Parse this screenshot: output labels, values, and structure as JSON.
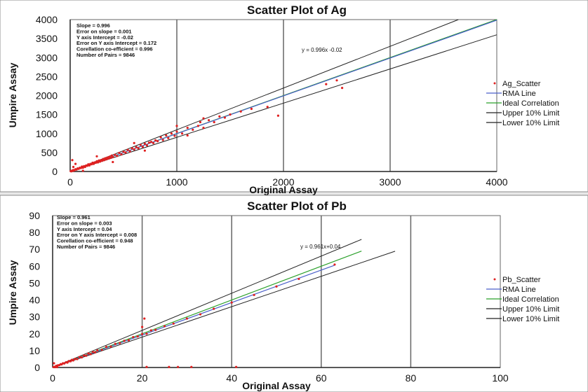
{
  "colors": {
    "scatter": "#e02020",
    "rma": "#4a5fc9",
    "ideal": "#2aa02a",
    "upper": "#222222",
    "lower": "#222222",
    "grid": "#666666"
  },
  "chart_data": [
    {
      "type": "scatter",
      "title": "Scatter Plot of Ag",
      "xlabel": "Original Assay",
      "ylabel": "Umpire Assay",
      "xlim": [
        0,
        4000
      ],
      "ylim": [
        0,
        4000
      ],
      "xticks": [
        "0",
        "1000",
        "2000",
        "3000",
        "4000"
      ],
      "yticks": [
        "0",
        "500",
        "1000",
        "1500",
        "2000",
        "2500",
        "3000",
        "3500",
        "4000"
      ],
      "stats": [
        "Slope = 0.996",
        "Error on slope = 0.001",
        "Y axis Intercept = -0.02",
        "Error on Y axis Intercept = 0.172",
        "Corellation co-efficient = 0.996",
        "Number of Pairs = 9846"
      ],
      "equation": "y = 0.996x -0.02",
      "legend": [
        "Ag_Scatter",
        "RMA Line",
        "Ideal Correlation",
        "Upper 10% Limit",
        "Lower 10% Limit"
      ],
      "rma": {
        "slope": 0.996,
        "intercept": -0.02
      },
      "lines": {
        "rma": [
          [
            0,
            0
          ],
          [
            4000,
            3984
          ]
        ],
        "ideal": [
          [
            0,
            0
          ],
          [
            4000,
            4000
          ]
        ],
        "upper": [
          [
            0,
            0
          ],
          [
            3640,
            4000
          ]
        ],
        "lower": [
          [
            0,
            0
          ],
          [
            4000,
            3600
          ]
        ]
      },
      "points": [
        [
          5,
          10
        ],
        [
          10,
          5
        ],
        [
          15,
          20
        ],
        [
          20,
          25
        ],
        [
          25,
          15
        ],
        [
          30,
          40
        ],
        [
          40,
          30
        ],
        [
          50,
          60
        ],
        [
          60,
          50
        ],
        [
          70,
          80
        ],
        [
          80,
          70
        ],
        [
          90,
          100
        ],
        [
          100,
          90
        ],
        [
          110,
          130
        ],
        [
          120,
          100
        ],
        [
          130,
          140
        ],
        [
          140,
          120
        ],
        [
          150,
          160
        ],
        [
          160,
          150
        ],
        [
          170,
          190
        ],
        [
          180,
          160
        ],
        [
          190,
          200
        ],
        [
          200,
          190
        ],
        [
          210,
          230
        ],
        [
          220,
          200
        ],
        [
          230,
          240
        ],
        [
          240,
          230
        ],
        [
          250,
          270
        ],
        [
          260,
          240
        ],
        [
          270,
          290
        ],
        [
          280,
          260
        ],
        [
          290,
          300
        ],
        [
          300,
          280
        ],
        [
          310,
          330
        ],
        [
          320,
          300
        ],
        [
          330,
          350
        ],
        [
          340,
          320
        ],
        [
          350,
          370
        ],
        [
          360,
          340
        ],
        [
          370,
          390
        ],
        [
          380,
          360
        ],
        [
          390,
          420
        ],
        [
          400,
          380
        ],
        [
          420,
          440
        ],
        [
          440,
          410
        ],
        [
          460,
          490
        ],
        [
          480,
          450
        ],
        [
          500,
          520
        ],
        [
          520,
          500
        ],
        [
          540,
          570
        ],
        [
          560,
          530
        ],
        [
          580,
          610
        ],
        [
          600,
          580
        ],
        [
          620,
          640
        ],
        [
          640,
          610
        ],
        [
          660,
          700
        ],
        [
          680,
          650
        ],
        [
          700,
          730
        ],
        [
          720,
          690
        ],
        [
          740,
          760
        ],
        [
          760,
          780
        ],
        [
          780,
          750
        ],
        [
          800,
          820
        ],
        [
          820,
          800
        ],
        [
          850,
          900
        ],
        [
          870,
          830
        ],
        [
          900,
          950
        ],
        [
          920,
          880
        ],
        [
          950,
          1000
        ],
        [
          980,
          940
        ],
        [
          1000,
          1050
        ],
        [
          1050,
          1000
        ],
        [
          1100,
          1150
        ],
        [
          1150,
          1100
        ],
        [
          1200,
          1200
        ],
        [
          1220,
          1300
        ],
        [
          1250,
          1150
        ],
        [
          1300,
          1350
        ],
        [
          1350,
          1300
        ],
        [
          1400,
          1450
        ],
        [
          1450,
          1420
        ],
        [
          1500,
          1500
        ],
        [
          1600,
          1580
        ],
        [
          1700,
          1650
        ],
        [
          1850,
          1700
        ],
        [
          1950,
          1470
        ],
        [
          2400,
          2300
        ],
        [
          2500,
          2400
        ],
        [
          2550,
          2200
        ],
        [
          20,
          300
        ],
        [
          50,
          200
        ],
        [
          120,
          20
        ],
        [
          30,
          120
        ],
        [
          250,
          400
        ],
        [
          400,
          250
        ],
        [
          600,
          750
        ],
        [
          700,
          550
        ],
        [
          1000,
          1200
        ],
        [
          1100,
          950
        ],
        [
          1250,
          1400
        ]
      ]
    },
    {
      "type": "scatter",
      "title": "Scatter Plot of Pb",
      "xlabel": "Original Assay",
      "ylabel": "Umpire Assay",
      "xlim": [
        0,
        100
      ],
      "ylim": [
        0,
        90
      ],
      "xticks": [
        "0",
        "20",
        "40",
        "60",
        "80",
        "100"
      ],
      "yticks": [
        "0",
        "10",
        "20",
        "30",
        "40",
        "50",
        "60",
        "70",
        "80",
        "90"
      ],
      "stats": [
        "Slope = 0.961",
        "Error on slope = 0.003",
        "Y axis Intercept = 0.04",
        "Error on Y axis Intercept = 0.008",
        "Corellation co-efficient = 0.948",
        "Number of Pairs = 9846"
      ],
      "equation": "y = 0.961x+0.04",
      "legend": [
        "Pb_Scatter",
        "RMA Line",
        "Ideal Correlation",
        "Upper 10% Limit",
        "Lower 10% Limit"
      ],
      "rma": {
        "slope": 0.961,
        "intercept": 0.04
      },
      "lines": {
        "rma": [
          [
            0,
            0
          ],
          [
            63,
            60.6
          ]
        ],
        "ideal": [
          [
            0,
            0
          ],
          [
            69,
            69
          ]
        ],
        "upper": [
          [
            0,
            0
          ],
          [
            69,
            75.9
          ]
        ],
        "lower": [
          [
            0,
            0
          ],
          [
            76.5,
            68.9
          ]
        ]
      },
      "points": [
        [
          0.2,
          0.3
        ],
        [
          0.5,
          0.4
        ],
        [
          0.8,
          1.0
        ],
        [
          1.0,
          0.9
        ],
        [
          1.2,
          1.3
        ],
        [
          1.5,
          1.4
        ],
        [
          1.8,
          2.0
        ],
        [
          2.0,
          1.8
        ],
        [
          2.3,
          2.5
        ],
        [
          2.6,
          2.4
        ],
        [
          3.0,
          3.1
        ],
        [
          3.3,
          2.9
        ],
        [
          3.6,
          3.8
        ],
        [
          4.0,
          3.7
        ],
        [
          4.3,
          4.5
        ],
        [
          4.6,
          4.2
        ],
        [
          5.0,
          5.1
        ],
        [
          5.5,
          5.0
        ],
        [
          6.0,
          6.2
        ],
        [
          6.5,
          6.0
        ],
        [
          7.0,
          7.1
        ],
        [
          7.5,
          7.0
        ],
        [
          8.0,
          8.3
        ],
        [
          8.5,
          7.9
        ],
        [
          9.0,
          9.2
        ],
        [
          9.5,
          9.0
        ],
        [
          10.0,
          10.1
        ],
        [
          11.0,
          10.5
        ],
        [
          12.0,
          12.2
        ],
        [
          13.0,
          12.4
        ],
        [
          14.0,
          14.0
        ],
        [
          15.0,
          14.5
        ],
        [
          16.0,
          15.8
        ],
        [
          17.0,
          16.2
        ],
        [
          18.0,
          18.0
        ],
        [
          19.0,
          18.4
        ],
        [
          20.0,
          19.8
        ],
        [
          20.0,
          24.0
        ],
        [
          20.5,
          29.0
        ],
        [
          21.0,
          20.0
        ],
        [
          22.0,
          22.0
        ],
        [
          23.0,
          22.3
        ],
        [
          25.0,
          24.5
        ],
        [
          27.0,
          26.0
        ],
        [
          30.0,
          29.0
        ],
        [
          33.0,
          31.5
        ],
        [
          36.0,
          34.8
        ],
        [
          40.0,
          38.5
        ],
        [
          45.0,
          43.0
        ],
        [
          50.0,
          48.0
        ],
        [
          55.0,
          52.5
        ],
        [
          63.0,
          61.0
        ],
        [
          21.0,
          0.3
        ],
        [
          26.0,
          0.3
        ],
        [
          28.0,
          0.3
        ],
        [
          31.0,
          0.3
        ],
        [
          41.0,
          0.3
        ],
        [
          0.3,
          2.5
        ],
        [
          0.5,
          0.2
        ],
        [
          1.0,
          0.2
        ]
      ]
    }
  ]
}
